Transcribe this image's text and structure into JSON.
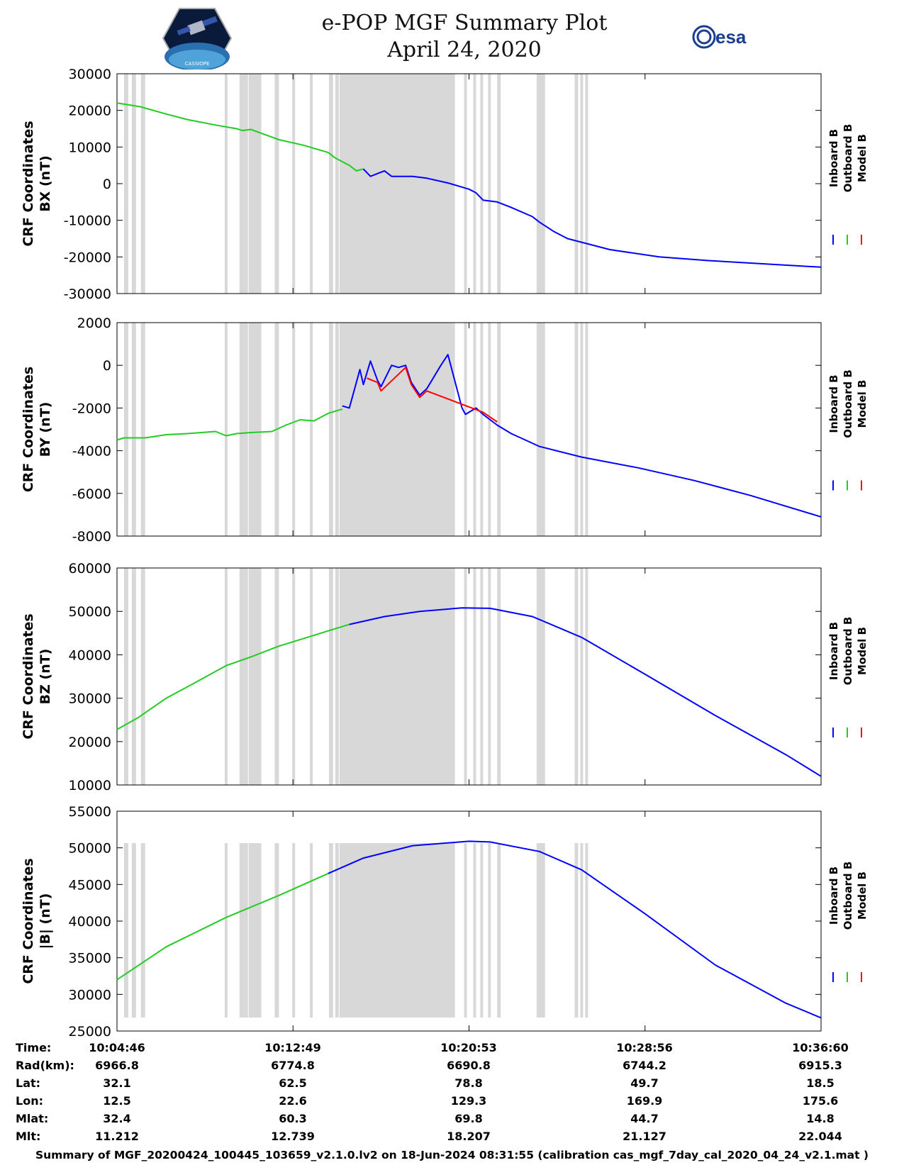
{
  "header": {
    "title": "e-POP MGF Summary Plot",
    "date": "April 24, 2020",
    "logo_left_text": "CASSIOPE",
    "logo_right_text": "esa"
  },
  "colors": {
    "inboard": "#0000ff",
    "outboard": "#22cc22",
    "model": "#ff0000",
    "shade": "#d8d8d8"
  },
  "chart_data": [
    {
      "type": "line",
      "ylabel_top": "CRF Coordinates",
      "ylabel_bottom": "BX (nT)",
      "ylim": [
        -30000,
        30000
      ],
      "yticks": [
        30000,
        20000,
        10000,
        0,
        -10000,
        -20000,
        -30000
      ],
      "legend": [
        "Inboard B",
        "Outboard B",
        "Model B"
      ],
      "series": [
        {
          "name": "Outboard B",
          "x": [
            0,
            0.033,
            0.07,
            0.1,
            0.14,
            0.17,
            0.178,
            0.19,
            0.23,
            0.265,
            0.3,
            0.31,
            0.33,
            0.34,
            0.35
          ],
          "values": [
            22000,
            21000,
            19000,
            17500,
            16000,
            15000,
            14500,
            14800,
            12000,
            10500,
            8500,
            7000,
            5000,
            3500,
            4000
          ]
        },
        {
          "name": "Inboard B",
          "x": [
            0.35,
            0.36,
            0.38,
            0.39,
            0.4,
            0.42,
            0.44,
            0.47,
            0.5,
            0.51,
            0.52,
            0.54,
            0.56,
            0.59,
            0.6,
            0.62,
            0.64,
            0.7,
            0.77,
            0.84,
            0.93,
            1.0
          ],
          "values": [
            4000,
            2000,
            3500,
            2000,
            2000,
            2000,
            1500,
            200,
            -1500,
            -2500,
            -4500,
            -5000,
            -6500,
            -9000,
            -10500,
            -13000,
            -15000,
            -18000,
            -20000,
            -21000,
            -22000,
            -22800
          ]
        }
      ]
    },
    {
      "type": "line",
      "ylabel_top": "CRF Coordinates",
      "ylabel_bottom": "BY (nT)",
      "ylim": [
        -8000,
        2000
      ],
      "yticks": [
        2000,
        0,
        -2000,
        -4000,
        -6000,
        -8000
      ],
      "legend": [
        "Inboard B",
        "Outboard B",
        "Model B"
      ],
      "series": [
        {
          "name": "Outboard B",
          "x": [
            0,
            0.01,
            0.04,
            0.07,
            0.1,
            0.14,
            0.155,
            0.17,
            0.19,
            0.22,
            0.24,
            0.26,
            0.28,
            0.3,
            0.31,
            0.32
          ],
          "values": [
            -3500,
            -3400,
            -3400,
            -3250,
            -3200,
            -3100,
            -3300,
            -3200,
            -3150,
            -3100,
            -2800,
            -2550,
            -2600,
            -2250,
            -2150,
            -2050
          ]
        },
        {
          "name": "Inboard B",
          "x": [
            0.32,
            0.33,
            0.335,
            0.345,
            0.35,
            0.36,
            0.37,
            0.375,
            0.39,
            0.4,
            0.41,
            0.418,
            0.43,
            0.44,
            0.46,
            0.47,
            0.49,
            0.495,
            0.51,
            0.52,
            0.54,
            0.56,
            0.58,
            0.6,
            0.66,
            0.74,
            0.82,
            0.9,
            1.0
          ],
          "values": [
            -1900,
            -2000,
            -1400,
            -200,
            -900,
            200,
            -700,
            -1000,
            0,
            -100,
            0,
            -800,
            -1400,
            -1100,
            0,
            500,
            -2000,
            -2300,
            -2000,
            -2300,
            -2800,
            -3200,
            -3500,
            -3800,
            -4300,
            -4800,
            -5400,
            -6100,
            -7100
          ]
        },
        {
          "name": "Model B",
          "x": [
            0.355,
            0.37,
            0.375,
            0.41,
            0.418,
            0.43,
            0.44,
            0.52,
            0.54
          ],
          "values": [
            -600,
            -800,
            -1200,
            -100,
            -900,
            -1500,
            -1200,
            -2200,
            -2650
          ]
        }
      ]
    },
    {
      "type": "line",
      "ylabel_top": "CRF Coordinates",
      "ylabel_bottom": "BZ (nT)",
      "ylim": [
        10000,
        60000
      ],
      "yticks": [
        60000,
        50000,
        40000,
        30000,
        20000,
        10000
      ],
      "legend": [
        "Inboard B",
        "Outboard B",
        "Model B"
      ],
      "series": [
        {
          "name": "Outboard B",
          "x": [
            0,
            0.03,
            0.07,
            0.11,
            0.155,
            0.19,
            0.23,
            0.27,
            0.3,
            0.33
          ],
          "values": [
            22800,
            25500,
            30000,
            33500,
            37500,
            39500,
            42000,
            44000,
            45500,
            47000
          ]
        },
        {
          "name": "Inboard B",
          "x": [
            0.33,
            0.38,
            0.43,
            0.49,
            0.53,
            0.59,
            0.66,
            0.75,
            0.85,
            0.95,
            1.0
          ],
          "values": [
            47000,
            48800,
            50000,
            50800,
            50700,
            48800,
            44000,
            35500,
            26000,
            17000,
            12000
          ]
        }
      ]
    },
    {
      "type": "line",
      "ylabel_top": "CRF Coordinates",
      "ylabel_bottom": "|B| (nT)",
      "ylim": [
        25000,
        55000
      ],
      "yticks": [
        55000,
        50000,
        45000,
        40000,
        35000,
        30000,
        25000
      ],
      "legend": [
        "Inboard B",
        "Outboard B",
        "Model B"
      ],
      "series": [
        {
          "name": "Outboard B",
          "x": [
            0,
            0.07,
            0.155,
            0.23,
            0.3
          ],
          "values": [
            32000,
            36500,
            40500,
            43500,
            46500
          ]
        },
        {
          "name": "Inboard B",
          "x": [
            0.3,
            0.35,
            0.42,
            0.5,
            0.53,
            0.6,
            0.66,
            0.75,
            0.85,
            0.95,
            1.0
          ],
          "values": [
            46500,
            48600,
            50300,
            50900,
            50800,
            49500,
            47000,
            41000,
            34000,
            28800,
            26800
          ]
        }
      ]
    }
  ],
  "shade_bands": [
    [
      0.01,
      0.016
    ],
    [
      0.021,
      0.027
    ],
    [
      0.034,
      0.04
    ],
    [
      0.153,
      0.157
    ],
    [
      0.174,
      0.186
    ],
    [
      0.187,
      0.205
    ],
    [
      0.224,
      0.23
    ],
    [
      0.249,
      0.253
    ],
    [
      0.274,
      0.278
    ],
    [
      0.301,
      0.307
    ],
    [
      0.31,
      0.315
    ],
    [
      0.316,
      0.48
    ],
    [
      0.493,
      0.497
    ],
    [
      0.506,
      0.51
    ],
    [
      0.516,
      0.52
    ],
    [
      0.527,
      0.531
    ],
    [
      0.54,
      0.545
    ],
    [
      0.596,
      0.608
    ],
    [
      0.65,
      0.655
    ],
    [
      0.658,
      0.662
    ],
    [
      0.665,
      0.669
    ]
  ],
  "time_axis": {
    "ticks": [
      "10:04:46",
      "10:12:49",
      "10:20:53",
      "10:28:56",
      "10:36:60"
    ]
  },
  "info_table": [
    {
      "label": "Time:",
      "values": [
        "10:04:46",
        "10:12:49",
        "10:20:53",
        "10:28:56",
        "10:36:60"
      ]
    },
    {
      "label": "Rad(km):",
      "values": [
        "6966.8",
        "6774.8",
        "6690.8",
        "6744.2",
        "6915.3"
      ]
    },
    {
      "label": "Lat:",
      "values": [
        "32.1",
        "62.5",
        "78.8",
        "49.7",
        "18.5"
      ]
    },
    {
      "label": "Lon:",
      "values": [
        "12.5",
        "22.6",
        "129.3",
        "169.9",
        "175.6"
      ]
    },
    {
      "label": "Mlat:",
      "values": [
        "32.4",
        "60.3",
        "69.8",
        "44.7",
        "14.8"
      ]
    },
    {
      "label": "Mlt:",
      "values": [
        "11.212",
        "12.739",
        "18.207",
        "21.127",
        "22.044"
      ]
    }
  ],
  "footer": "Summary of MGF_20200424_100445_103659_v2.1.0.lv2 on 18-Jun-2024 08:31:55 (calibration cas_mgf_7day_cal_2020_04_24_v2.1.mat )"
}
